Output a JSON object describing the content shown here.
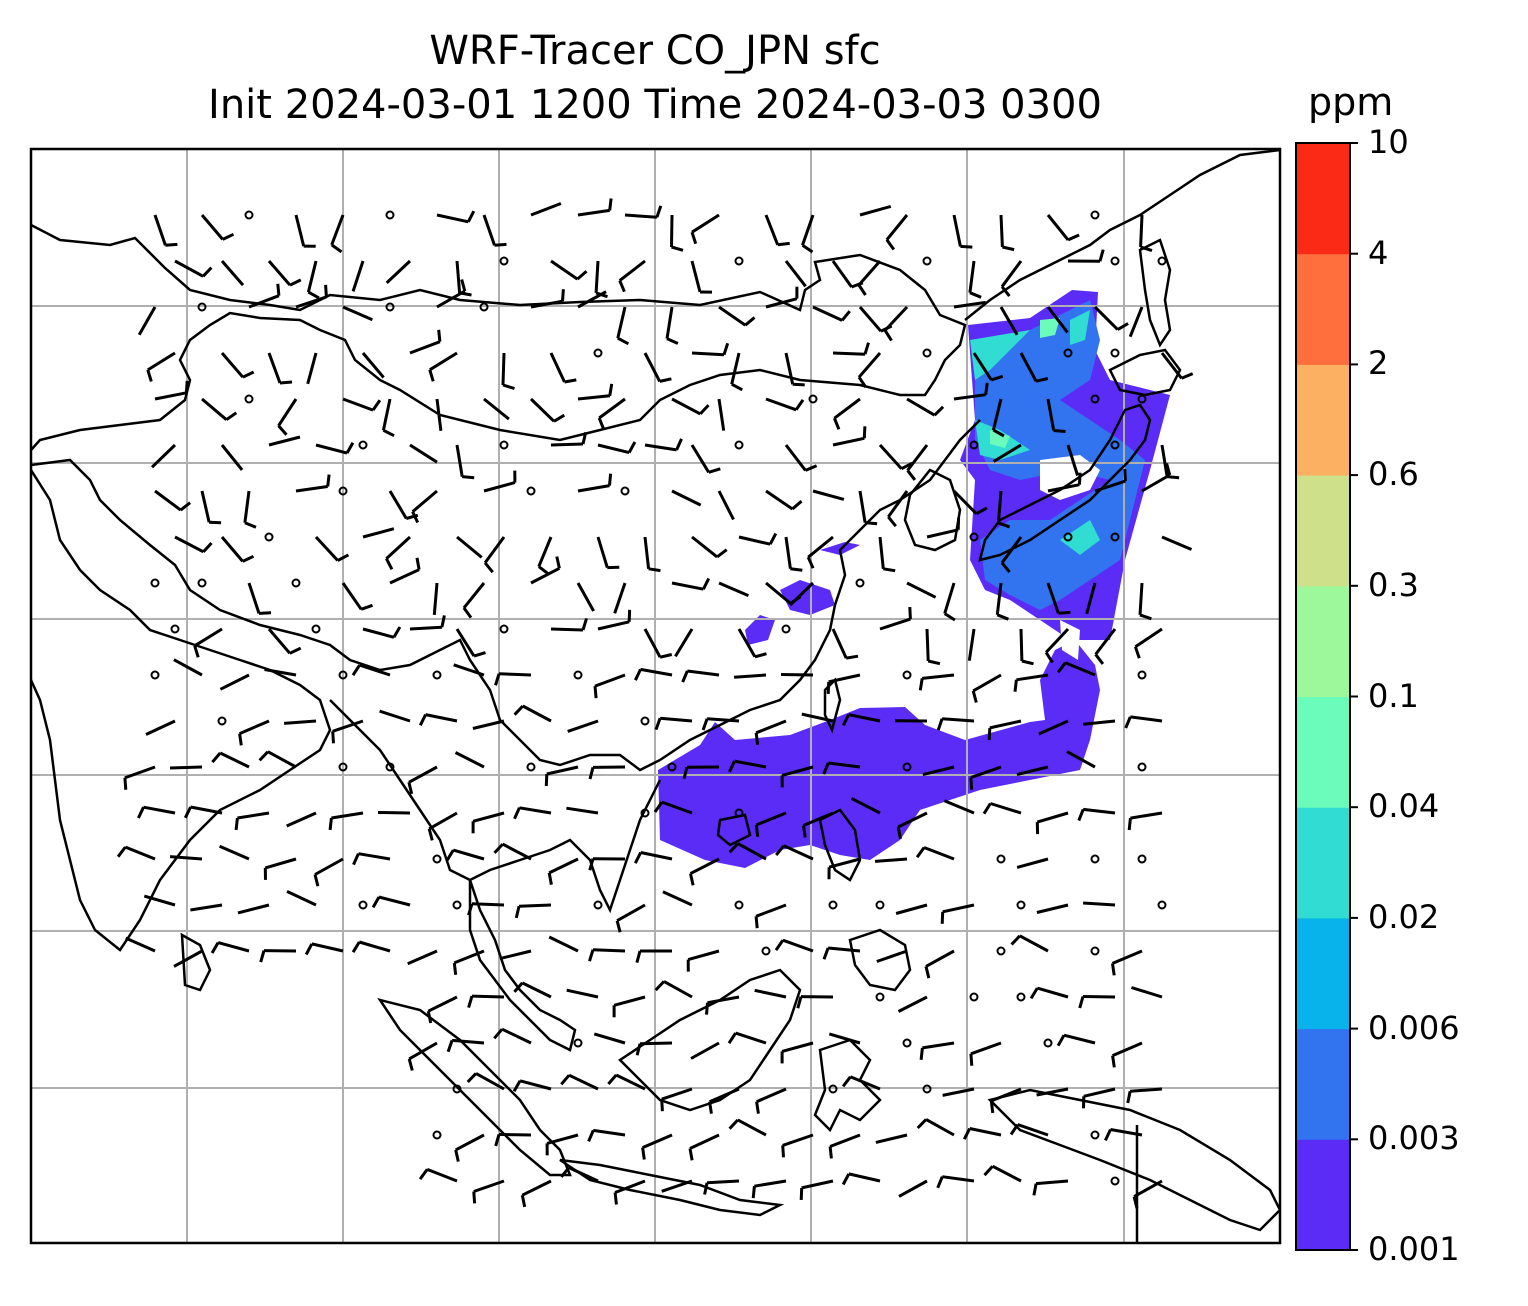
{
  "title_line1": "WRF-Tracer CO_JPN sfc",
  "title_line2": "Init 2024-03-01 1200 Time 2024-03-03 0300",
  "colorbar": {
    "unit": "ppm",
    "levels": [
      "0.001",
      "0.003",
      "0.006",
      "0.02",
      "0.04",
      "0.1",
      "0.3",
      "0.6",
      "2",
      "4",
      "10"
    ],
    "colors": [
      "#5b2cf6",
      "#3273f0",
      "#08b2ea",
      "#31ddd2",
      "#6bfbba",
      "#9cf89a",
      "#cfe08a",
      "#fcb062",
      "#fe6f3d",
      "#fa2a17"
    ]
  },
  "map": {
    "projection_grid": "lat/lon gridlines",
    "grid_on": true,
    "wind_barbs": true
  }
}
